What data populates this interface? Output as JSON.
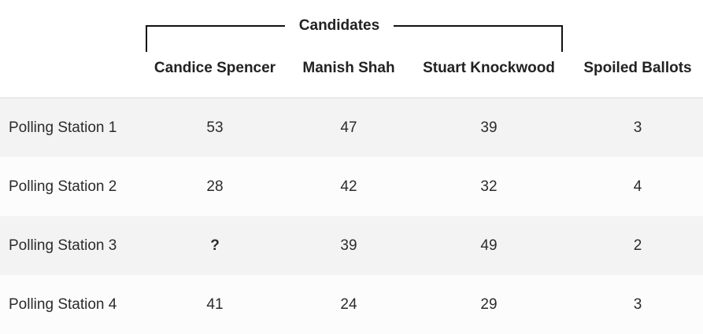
{
  "chart_data": {
    "type": "table",
    "group_header": "Candidates",
    "columns": [
      "Candice Spencer",
      "Manish Shah",
      "Stuart Knockwood",
      "Spoiled Ballots"
    ],
    "rows": [
      {
        "label": "Polling Station 1",
        "values": [
          "53",
          "47",
          "39",
          "3"
        ]
      },
      {
        "label": "Polling Station 2",
        "values": [
          "28",
          "42",
          "32",
          "4"
        ]
      },
      {
        "label": "Polling Station 3",
        "values": [
          "?",
          "39",
          "49",
          "2"
        ]
      },
      {
        "label": "Polling Station 4",
        "values": [
          "41",
          "24",
          "29",
          "3"
        ]
      }
    ]
  },
  "colors": {
    "header_background": "#ffffff",
    "row_shaded": "#f3f3f3",
    "row_plain": "#fcfcfc",
    "text": "#2b2b2b",
    "bracket": "#111111"
  }
}
